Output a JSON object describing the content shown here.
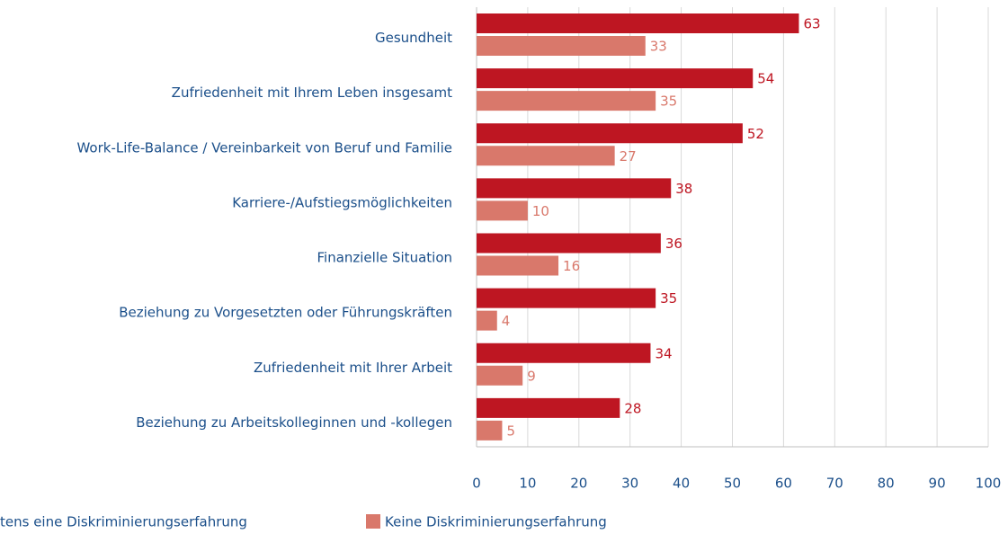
{
  "chart_data": {
    "type": "bar",
    "orientation": "horizontal",
    "categories": [
      "Gesundheit",
      "Zufriedenheit mit Ihrem Leben insgesamt",
      "Work-Life-Balance / Vereinbarkeit von Beruf und Familie",
      "Karriere-/Aufstiegsmöglichkeiten",
      "Finanzielle Situation",
      "Beziehung zu Vorgesetzten oder Führungskräften",
      "Zufriedenheit mit Ihrer Arbeit",
      "Beziehung zu Arbeitskolleginnen und -kollegen"
    ],
    "series": [
      {
        "name": "tens eine Diskriminierungserfahrung",
        "color": "#be1622",
        "values": [
          63,
          54,
          52,
          38,
          36,
          35,
          34,
          28
        ]
      },
      {
        "name": "Keine Diskriminierungserfahrung",
        "color": "#d9786b",
        "values": [
          33,
          35,
          27,
          10,
          16,
          4,
          9,
          5
        ]
      }
    ],
    "xlim": [
      0,
      100
    ],
    "xticks": [
      0,
      10,
      20,
      30,
      40,
      50,
      60,
      70,
      80,
      90,
      100
    ],
    "grid": true
  }
}
